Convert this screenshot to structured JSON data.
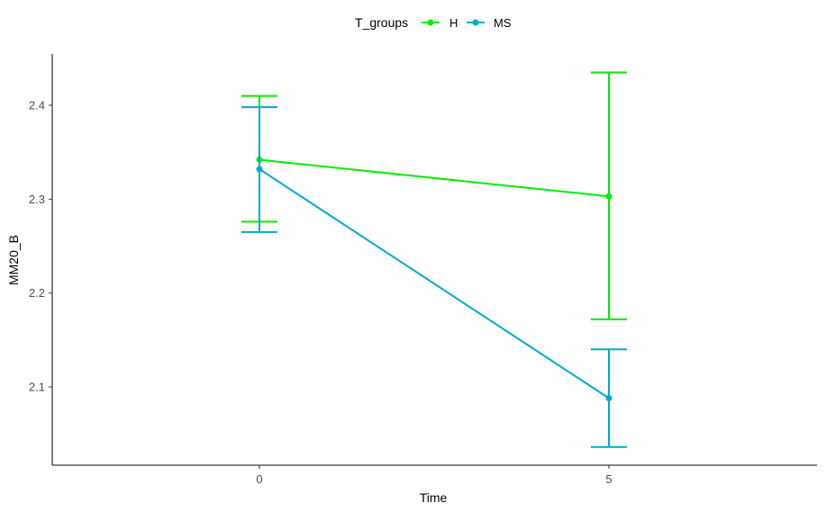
{
  "chart_data": {
    "type": "line",
    "title": "",
    "xlabel": "Time",
    "ylabel": "MM20_B",
    "x": [
      0,
      5
    ],
    "x_tick_labels": [
      "0",
      "5"
    ],
    "y_tick_labels": [
      "2.1",
      "2.2",
      "2.3",
      "2.4"
    ],
    "y_ticks": [
      2.1,
      2.2,
      2.3,
      2.4
    ],
    "ylim": [
      2.02,
      2.455
    ],
    "grid": false,
    "legend": {
      "title": "T_groups",
      "placement": "top"
    },
    "series": [
      {
        "name": "H",
        "color": "#00ee00",
        "values": [
          2.342,
          2.303
        ],
        "error_low": [
          2.276,
          2.172
        ],
        "error_high": [
          2.41,
          2.435
        ]
      },
      {
        "name": "MS",
        "color": "#00aacc",
        "values": [
          2.332,
          2.088
        ],
        "error_low": [
          2.265,
          2.036
        ],
        "error_high": [
          2.398,
          2.14
        ]
      }
    ]
  }
}
